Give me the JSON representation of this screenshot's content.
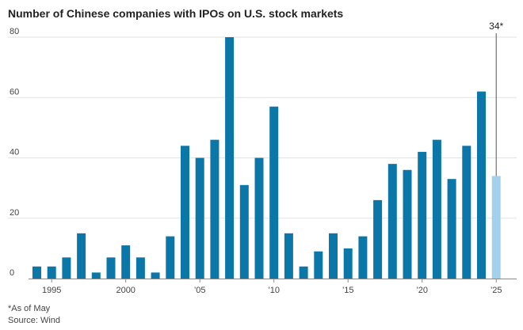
{
  "chart_data": {
    "type": "bar",
    "title": "Number of Chinese companies with IPOs on U.S. stock markets",
    "xlabel": "",
    "ylabel": "",
    "ylim": [
      0,
      80
    ],
    "yticks": [
      "0",
      "20",
      "40",
      "60",
      "80"
    ],
    "ytick_values": [
      0,
      20,
      40,
      60,
      80
    ],
    "x": [
      1994,
      1995,
      1996,
      1997,
      1998,
      1999,
      2000,
      2001,
      2002,
      2003,
      2004,
      2005,
      2006,
      2007,
      2008,
      2009,
      2010,
      2011,
      2012,
      2013,
      2014,
      2015,
      2016,
      2017,
      2018,
      2019,
      2020,
      2021,
      2022,
      2023,
      2024,
      2025
    ],
    "values": [
      4,
      4,
      7,
      15,
      2,
      7,
      11,
      7,
      2,
      14,
      44,
      40,
      46,
      80,
      31,
      40,
      57,
      15,
      4,
      9,
      15,
      10,
      14,
      26,
      38,
      36,
      42,
      46,
      33,
      44,
      62,
      34
    ],
    "partial_year": 2025,
    "xtick_years": [
      1995,
      2000,
      2005,
      2010,
      2015,
      2020,
      2025
    ],
    "xtick_labels": [
      "1995",
      "2000",
      "’05",
      "’10",
      "’15",
      "’20",
      "’25"
    ],
    "annotation": "34*",
    "colors": {
      "bar": "#0b77a9",
      "partial_bar": "#a3d1ec",
      "grid": "#e2e2e2",
      "axis": "#888888"
    }
  },
  "footnote": "*As of May",
  "source": "Source: Wind"
}
